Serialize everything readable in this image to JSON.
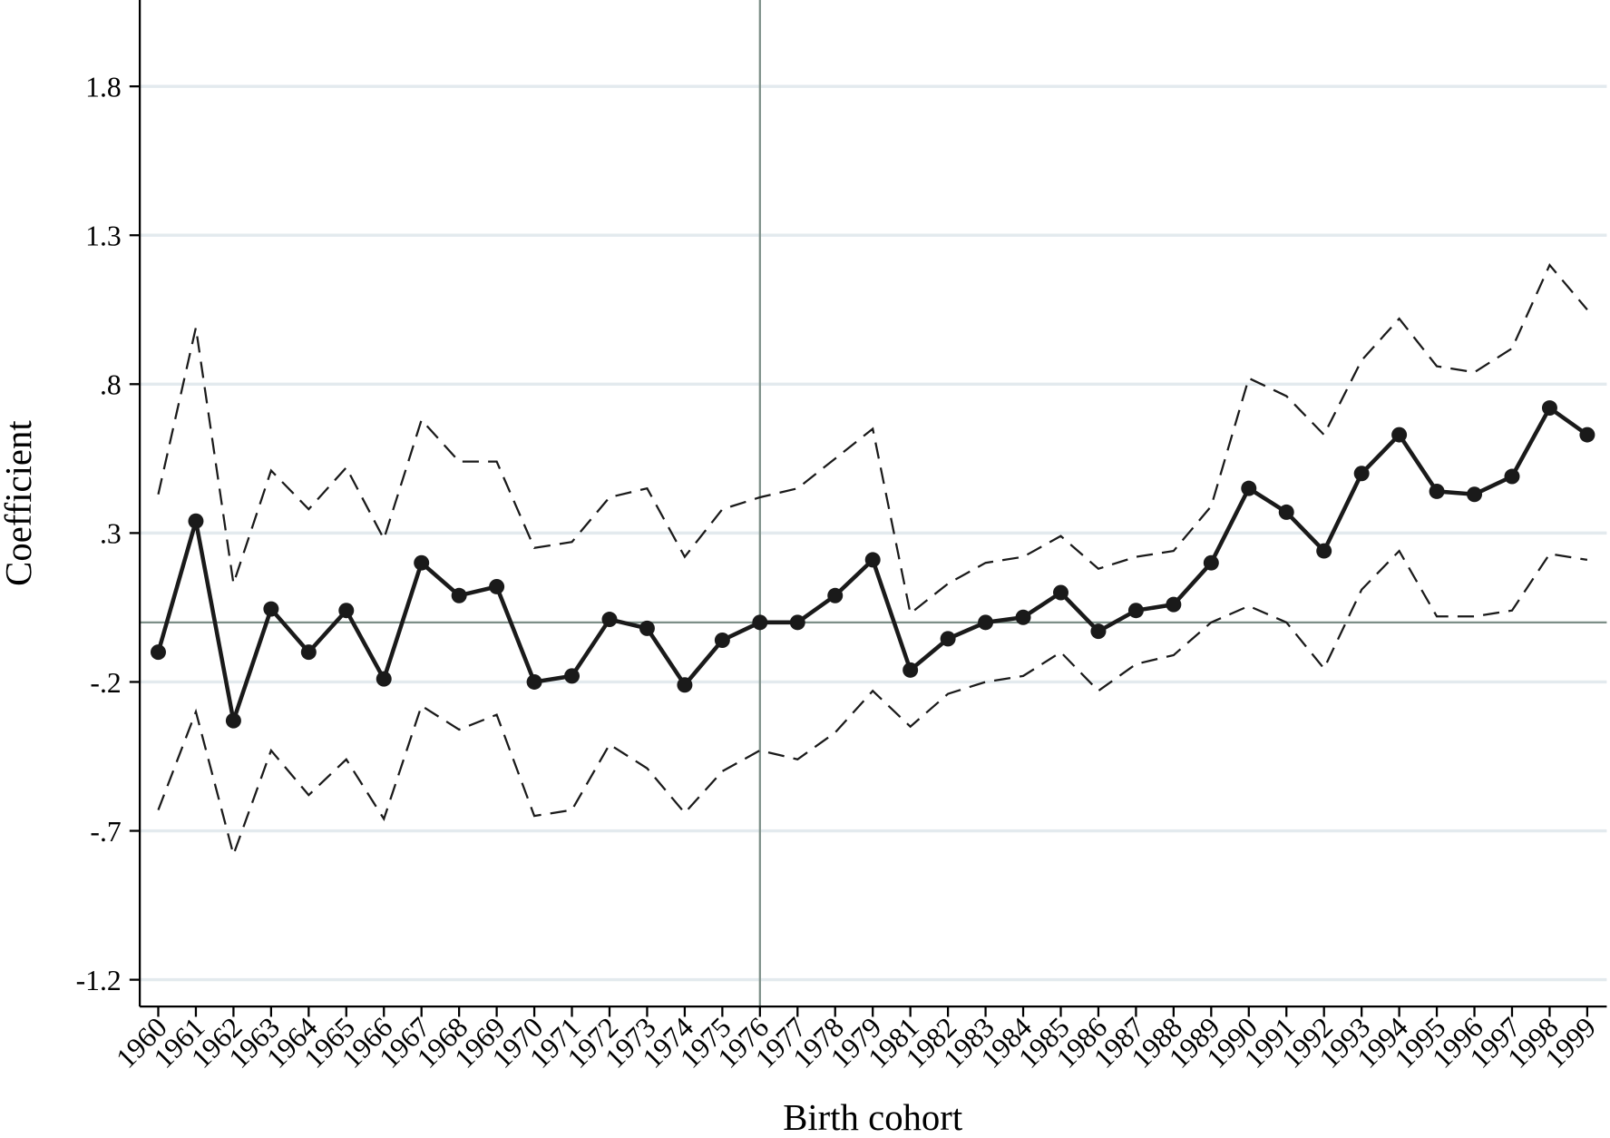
{
  "chart_data": {
    "type": "line",
    "x_label": "Birth cohort",
    "y_label": "Coefficient",
    "categories": [
      "1960",
      "1961",
      "1962",
      "1963",
      "1964",
      "1965",
      "1966",
      "1967",
      "1968",
      "1969",
      "1970",
      "1971",
      "1972",
      "1973",
      "1974",
      "1975",
      "1976",
      "1977",
      "1978",
      "1979",
      "1981",
      "1982",
      "1983",
      "1984",
      "1985",
      "1986",
      "1987",
      "1988",
      "1989",
      "1990",
      "1991",
      "1992",
      "1993",
      "1994",
      "1995",
      "1996",
      "1997",
      "1998",
      "1999"
    ],
    "series": [
      {
        "color": "#1a1a1a",
        "style": "solid",
        "markers": true,
        "values": [
          -0.1,
          0.34,
          -0.33,
          0.045,
          -0.1,
          0.04,
          -0.19,
          0.2,
          0.09,
          0.12,
          -0.2,
          -0.18,
          0.01,
          -0.02,
          -0.21,
          -0.06,
          0.0,
          0.0,
          0.09,
          0.21,
          -0.16,
          -0.055,
          0.0,
          0.017,
          0.1,
          -0.03,
          0.04,
          0.06,
          0.2,
          0.45,
          0.37,
          0.24,
          0.5,
          0.63,
          0.44,
          0.43,
          0.49,
          0.72,
          0.63
        ]
      },
      {
        "color": "#1a1a1a",
        "style": "dashed",
        "markers": false,
        "values": [
          0.43,
          0.99,
          0.13,
          0.51,
          0.38,
          0.52,
          0.28,
          0.68,
          0.54,
          0.54,
          0.25,
          0.27,
          0.42,
          0.45,
          0.22,
          0.38,
          0.42,
          0.45,
          0.55,
          0.65,
          0.03,
          0.13,
          0.2,
          0.22,
          0.29,
          0.18,
          0.22,
          0.24,
          0.39,
          0.82,
          0.76,
          0.63,
          0.88,
          1.02,
          0.86,
          0.84,
          0.92,
          1.2,
          1.05
        ]
      },
      {
        "color": "#1a1a1a",
        "style": "dashed",
        "markers": false,
        "values": [
          -0.63,
          -0.3,
          -0.78,
          -0.43,
          -0.58,
          -0.46,
          -0.66,
          -0.28,
          -0.36,
          -0.31,
          -0.65,
          -0.63,
          -0.41,
          -0.49,
          -0.64,
          -0.5,
          -0.43,
          -0.46,
          -0.37,
          -0.23,
          -0.35,
          -0.24,
          -0.2,
          -0.18,
          -0.1,
          -0.23,
          -0.14,
          -0.11,
          0.0,
          0.055,
          0.0,
          -0.155,
          0.11,
          0.24,
          0.02,
          0.02,
          0.04,
          0.23,
          0.21
        ]
      }
    ],
    "ylim": [
      -1.29,
      2.09
    ],
    "yticks": [
      -1.2,
      {
        "value": -0.7,
        "label": "-.7"
      },
      {
        "value": -0.2,
        "label": "-.2"
      },
      {
        "value": 0.3,
        "label": ".3"
      },
      {
        "value": 0.8,
        "label": ".8"
      },
      1.3,
      1.8
    ],
    "grid": true,
    "grid_color": "#e3eaee",
    "yline": 0,
    "xline": "1976",
    "refline_color": "#7d8f88"
  }
}
